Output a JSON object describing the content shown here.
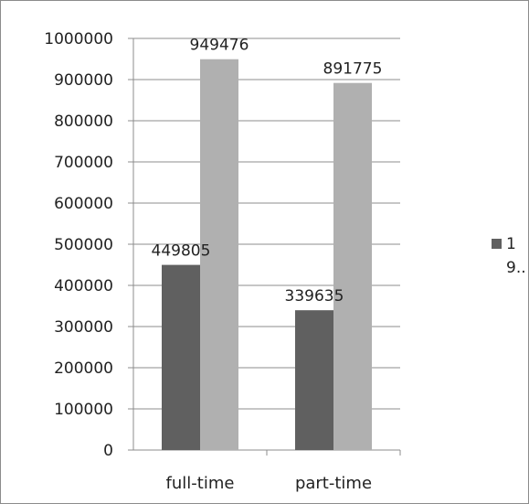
{
  "chart_data": {
    "type": "bar",
    "categories": [
      "full-time",
      "part-time"
    ],
    "series": [
      {
        "values": [
          449805,
          339635
        ],
        "color": "#606060"
      },
      {
        "values": [
          949476,
          891775
        ],
        "color": "#b0b0b0"
      }
    ],
    "ylim": [
      0,
      1000000
    ],
    "yticks": [
      0,
      100000,
      200000,
      300000,
      400000,
      500000,
      600000,
      700000,
      800000,
      900000,
      1000000
    ],
    "grid": true,
    "data_labels": true,
    "legend": {
      "placement": "right",
      "entries": [
        "1",
        "9.."
      ]
    }
  }
}
